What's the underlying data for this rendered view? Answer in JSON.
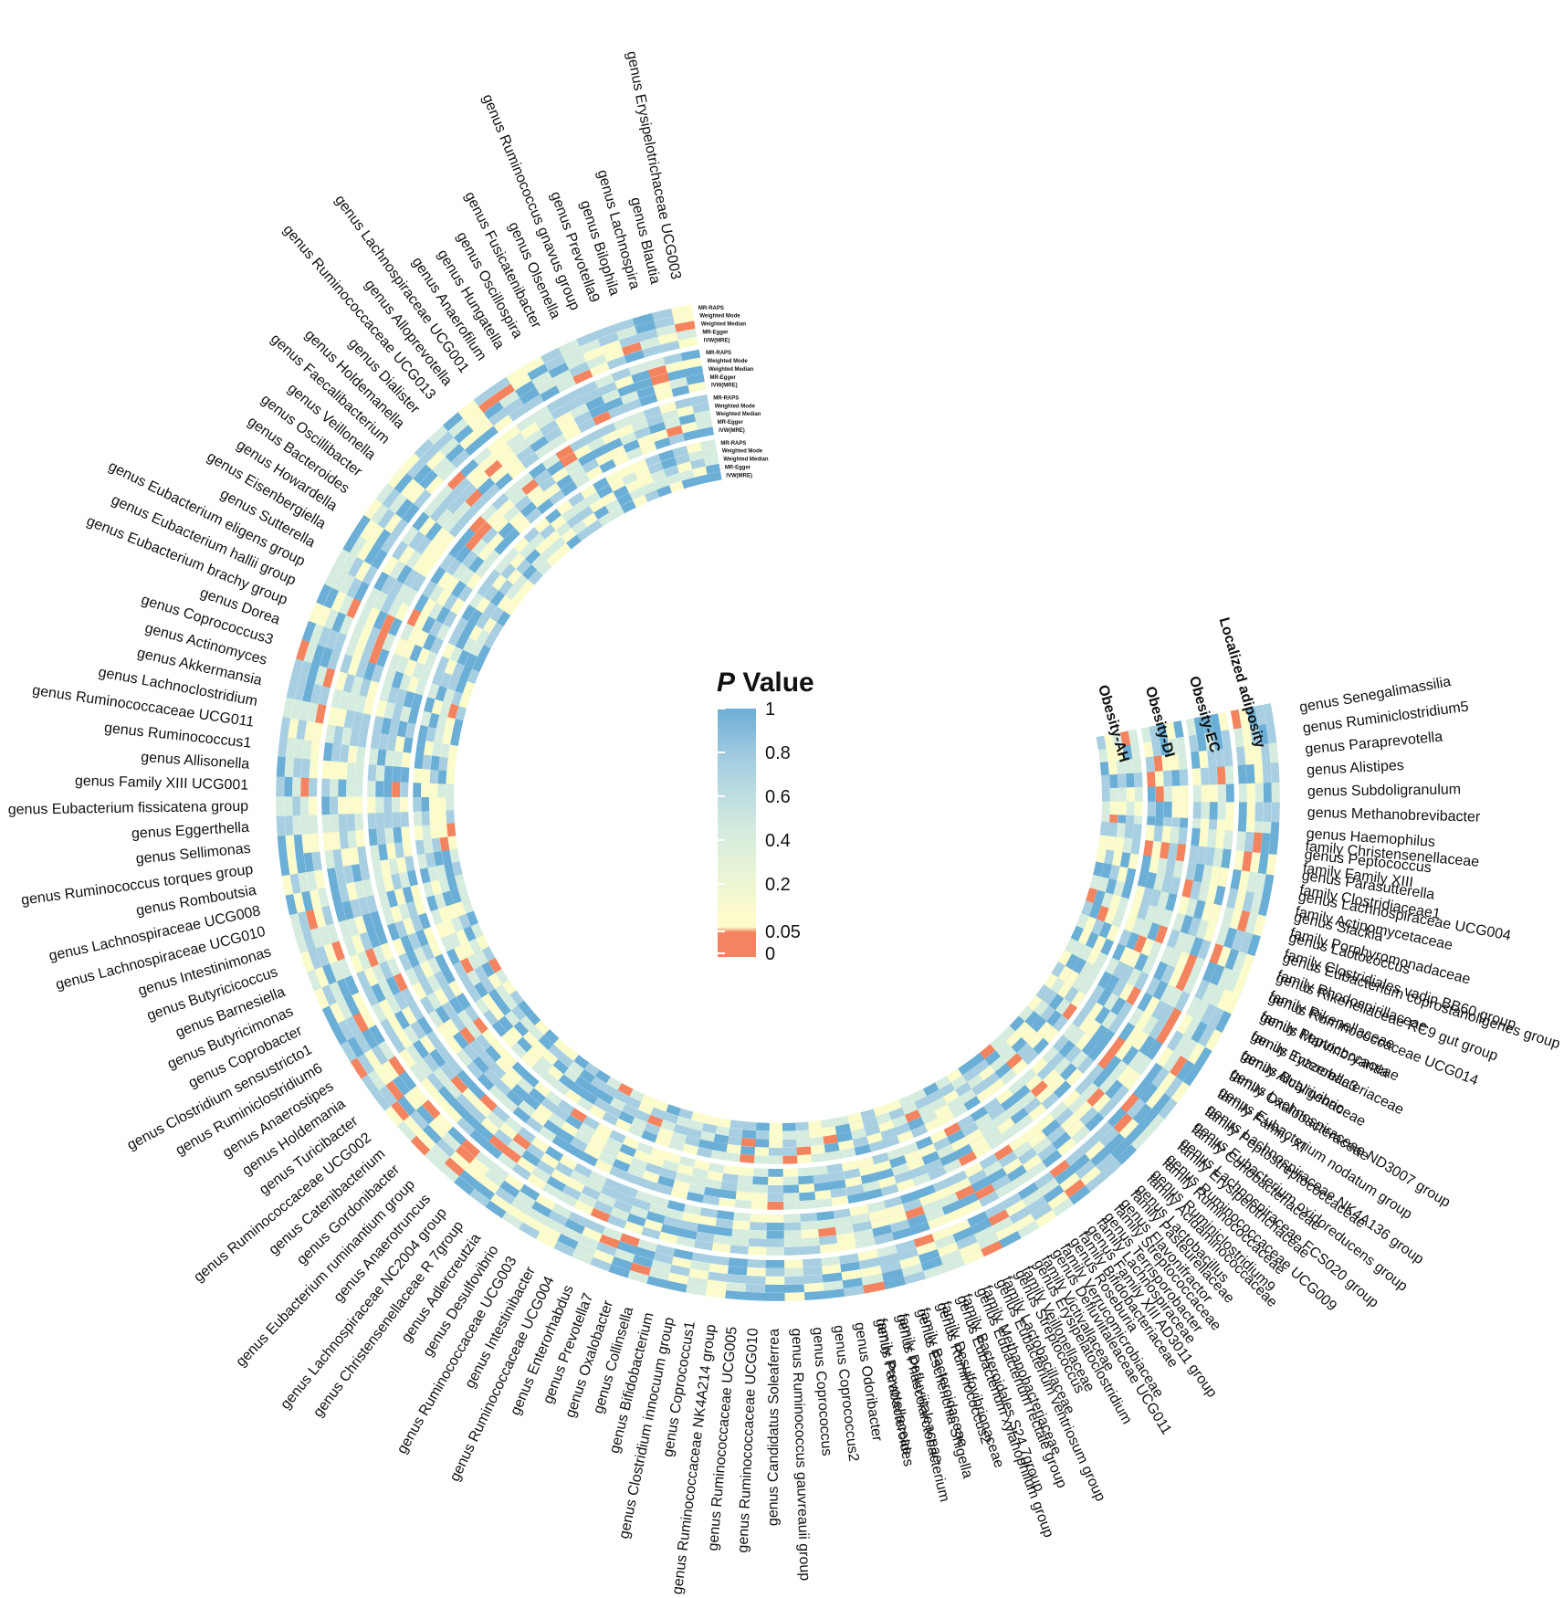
{
  "chart_data": {
    "type": "heatmap",
    "layout": "circular",
    "legend": {
      "title_italic": "P",
      "title_rest": " Value",
      "ticks": [
        "1",
        "0.8",
        "0.6",
        "0.4",
        "0.2",
        "0.05",
        "0"
      ],
      "tick_values": [
        1,
        0.8,
        0.6,
        0.4,
        0.2,
        0.05,
        0
      ],
      "colors": {
        "high": "#6BAED6",
        "mid_high": "#A7CFE1",
        "mid": "#D6ECDF",
        "low": "#FBFBCB",
        "significant": "#F4845F"
      },
      "placement": "center"
    },
    "rings": [
      "Obesity-AH",
      "Obesity-DI",
      "Obesity-EC",
      "Localized adiposity"
    ],
    "methods": [
      "MR-RAPS",
      "Weighted Mode",
      "Weighted Median",
      "MR-Egger",
      "IVW(MRE)"
    ],
    "genus_labels": [
      "genus Senegalimassilia",
      "genus Ruminiclostridium5",
      "genus Paraprevotella",
      "genus Alistipes",
      "genus Subdoligranulum",
      "genus Methanobrevibacter",
      "genus Haemophilus",
      "genus Peptococcus",
      "genus Parasutterella",
      "genus Lachnospiraceae UCG004",
      "genus Slackia",
      "genus Lactococcus",
      "genus Eubacterium coprostanoligenes group",
      "genus Rikenellaceae RC9 gut group",
      "genus Ruminococcaceae UCG014",
      "genus Marvinbryantia",
      "genus Tyzzerella3",
      "genus Butyrivibrio",
      "genus Lachnospiraceae ND3007 group",
      "genus Eubacterium nodatum group",
      "genus Lachnospiraceae NK4A136 group",
      "genus Eubacterium oxidoreducens group",
      "genus Lachnospiraceae FCS020 group",
      "genus Ruminococcaceae UCG009",
      "genus Ruminiclostridium9",
      "genus Lactobacillus",
      "genus Flavonifractor",
      "genus Terrisporobacter",
      "genus Family XIII AD3011 group",
      "genus Roseburia",
      "genus Defluviitaleaceae UCG011",
      "genus Erysipelatoclostridium",
      "genus Streptococcus",
      "genus Eubacterium ventriosum group",
      "genus Eubacterium rectale group",
      "genus Eubacterium xylanophilum group",
      "genus Ruminococcus2",
      "genus Escherichia Shigella",
      "genus Phascolarctobacterium",
      "genus Parabacteroides",
      "genus Odoribacter",
      "genus Coprococcus2",
      "genus Coprococcus",
      "genus Ruminococcus gauvreauii group",
      "genus Candidatus Soleaferrea",
      "genus Ruminococcaceae UCG010",
      "genus Ruminococcaceae UCG005",
      "genus Ruminococcaceae NK4A214 group",
      "genus Coprococcus1",
      "genus Clostridium innocuum group",
      "genus Bifidobacterium",
      "genus Collinsella",
      "genus Oxalobacter",
      "genus Prevotella7",
      "genus Enterorhabdus",
      "genus Ruminococcaceae UCG004",
      "genus Intestinibacter",
      "genus Ruminococcaceae UCG003",
      "genus Desulfovibrio",
      "genus Adlercreutzia",
      "genus Christensenellaceae R 7group",
      "genus Lachnospiraceae NC2004 group",
      "genus Anaerotruncus",
      "genus Eubacterium ruminantium group",
      "genus Gordonibacter",
      "genus Catenibacterium",
      "genus Ruminococcaceae UCG002",
      "genus Turicibacter",
      "genus Holdemania",
      "genus Anaerostipes",
      "genus Ruminiclostridium6",
      "genus Clostridium sensustricto1",
      "genus Coprobacter",
      "genus Butyricimonas",
      "genus Barnesiella",
      "genus Butyricicoccus",
      "genus Intestinimonas",
      "genus Lachnospiraceae UCG010",
      "genus Lachnospiraceae UCG008",
      "genus Romboutsia",
      "genus Ruminococcus torques group",
      "genus Sellimonas",
      "genus Eggerthella",
      "genus Eubacterium fissicatena group",
      "genus Family XIII UCG001",
      "genus Allisonella",
      "genus Ruminococcus1",
      "genus Ruminococcaceae UCG011",
      "genus Lachnoclostridium",
      "genus Akkermansia",
      "genus Actinomyces",
      "genus Coprococcus3",
      "genus Dorea",
      "genus Eubacterium brachy group",
      "genus Eubacterium hallii group",
      "genus Eubacterium eligens group",
      "genus Sutterella",
      "genus Eisenbergiella",
      "genus Howardella",
      "genus Bacteroides",
      "genus Oscillibacter",
      "genus Veillonella",
      "genus Faecalibacterium",
      "genus Holdemanella",
      "genus Dialister",
      "genus Ruminococcaceae UCG013",
      "genus Alloprevotella",
      "genus Lachnospiraceae UCG001",
      "genus Anaerofilum",
      "genus Hungatella",
      "genus Oscillospira",
      "genus Fusicatenibacter",
      "genus Olsenella",
      "genus Ruminococcus gnavus group",
      "genus Prevotella9",
      "genus Bilophila",
      "genus Lachnospira",
      "genus Blautia",
      "genus Erysipelotrichaceae UCG003"
    ],
    "family_labels": [
      "family Christensenellaceae",
      "family Family XIII",
      "family Clostridiaceae1",
      "family Actinomycetaceae",
      "family Porphyromonadaceae",
      "family Clostridiales vadin BB60 group",
      "family Rhodospirillaceae",
      "family Rikenellaceae",
      "family Peptococcaceae",
      "family Enterobacteriaceae",
      "family Alcaligenaceae",
      "family Oxalobacteraceae",
      "family Family XI",
      "family Peptostreptococcaceae",
      "family Coriobacteriaceae",
      "family Erysipelotrichaceae",
      "family Ruminococcaceae",
      "family Acidaminococcaceae",
      "family Pasteurellaceae",
      "family Streptococcaceae",
      "family Lachnospiraceae",
      "family Bifidobacteriaceae",
      "family Verrucomicrobiaceae",
      "family Victivallaceae",
      "family Veillonellaceae",
      "family Lactobacillaceae",
      "family Methanobacteriaceae",
      "family Bacteroidales S24 7group",
      "family Desulfovibrionaceae",
      "family Bacteroidaceae",
      "family Defluviitaleaceae",
      "family Prevotellaceae"
    ]
  }
}
